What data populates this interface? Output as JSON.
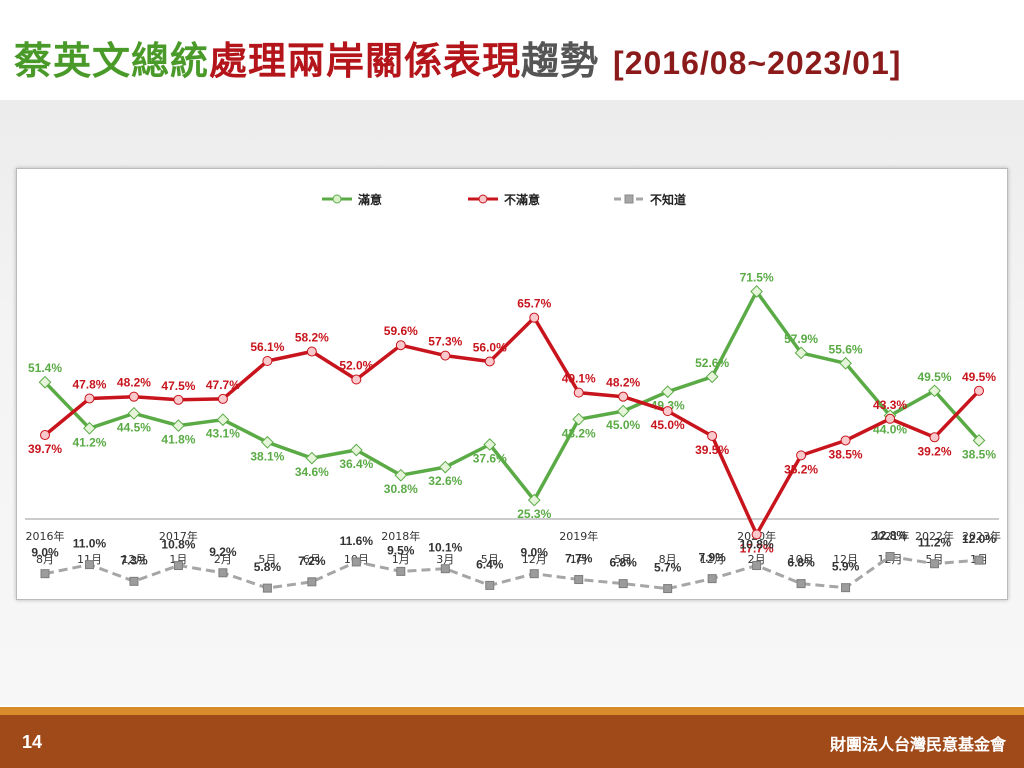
{
  "header": {
    "title_part1": "蔡英文總統",
    "title_part2": "處理兩岸關係表現",
    "title_part3": "趨勢",
    "date_range": "[2016/08~2023/01]"
  },
  "footer": {
    "page_number": "14",
    "organization": "財團法人台灣民意基金會"
  },
  "colors": {
    "satisfied": "#5aab46",
    "dissatisfied": "#c8141c",
    "unknown": "#a6a6a6",
    "footer": "#a04a1a",
    "footer_line": "#d98c2b"
  },
  "chart_data": {
    "type": "line",
    "title": "",
    "xlabel": "",
    "ylabel": "",
    "legend_position": "top-center",
    "grid": false,
    "year_labels": [
      "2016年",
      "2017年",
      "2018年",
      "2019年",
      "2020年",
      "2021年",
      "2022年",
      "2023年"
    ],
    "year_label_positions": [
      0,
      3,
      8,
      12,
      16,
      19,
      20,
      21
    ],
    "categories": [
      "8月",
      "11月",
      "12月",
      "1月",
      "2月",
      "5月",
      "6月",
      "10月",
      "1月",
      "3月",
      "5月",
      "12月",
      "1月",
      "5月",
      "8月",
      "12月",
      "2月",
      "10月",
      "12月",
      "12月",
      "5月",
      "1月"
    ],
    "series": [
      {
        "name": "滿意",
        "values": [
          51.4,
          41.2,
          44.5,
          41.8,
          43.1,
          38.1,
          34.6,
          36.4,
          30.8,
          32.6,
          37.6,
          25.3,
          43.2,
          45.0,
          49.3,
          52.6,
          71.5,
          57.9,
          55.6,
          44.0,
          49.5,
          38.5
        ],
        "labels": [
          "51.4%",
          "41.2%",
          "44.5%",
          "41.8%",
          "43.1%",
          "38.1%",
          "34.6%",
          "36.4%",
          "30.8%",
          "32.6%",
          "37.6%",
          "25.3%",
          "43.2%",
          "45.0%",
          "49.3%",
          "52.6%",
          "71.5%",
          "57.9%",
          "55.6%",
          "44.0%",
          "49.5%",
          "38.5%"
        ]
      },
      {
        "name": "不滿意",
        "values": [
          39.7,
          47.8,
          48.2,
          47.5,
          47.7,
          56.1,
          58.2,
          52.0,
          59.6,
          57.3,
          56.0,
          65.7,
          49.1,
          48.2,
          45.0,
          39.5,
          17.7,
          35.2,
          38.5,
          43.3,
          39.2,
          49.5
        ],
        "labels": [
          "39.7%",
          "47.8%",
          "48.2%",
          "47.5%",
          "47.7%",
          "56.1%",
          "58.2%",
          "52.0%",
          "59.6%",
          "57.3%",
          "56.0%",
          "65.7%",
          "49.1%",
          "48.2%",
          "45.0%",
          "39.5%",
          "17.7%",
          "35.2%",
          "38.5%",
          "43.3%",
          "39.2%",
          "49.5%"
        ]
      },
      {
        "name": "不知道",
        "values": [
          9.0,
          11.0,
          7.3,
          10.8,
          9.2,
          5.8,
          7.2,
          11.6,
          9.5,
          10.1,
          6.4,
          9.0,
          7.7,
          6.8,
          5.7,
          7.9,
          10.8,
          6.8,
          5.9,
          12.8,
          11.2,
          12.0
        ],
        "labels": [
          "9.0%",
          "11.0%",
          "7.3%",
          "10.8%",
          "9.2%",
          "5.8%",
          "7.2%",
          "11.6%",
          "9.5%",
          "10.1%",
          "6.4%",
          "9.0%",
          "7.7%",
          "6.8%",
          "5.7%",
          "7.9%",
          "10.8%",
          "6.8%",
          "5.9%",
          "12.8%",
          "11.2%",
          "12.0%"
        ]
      }
    ]
  }
}
